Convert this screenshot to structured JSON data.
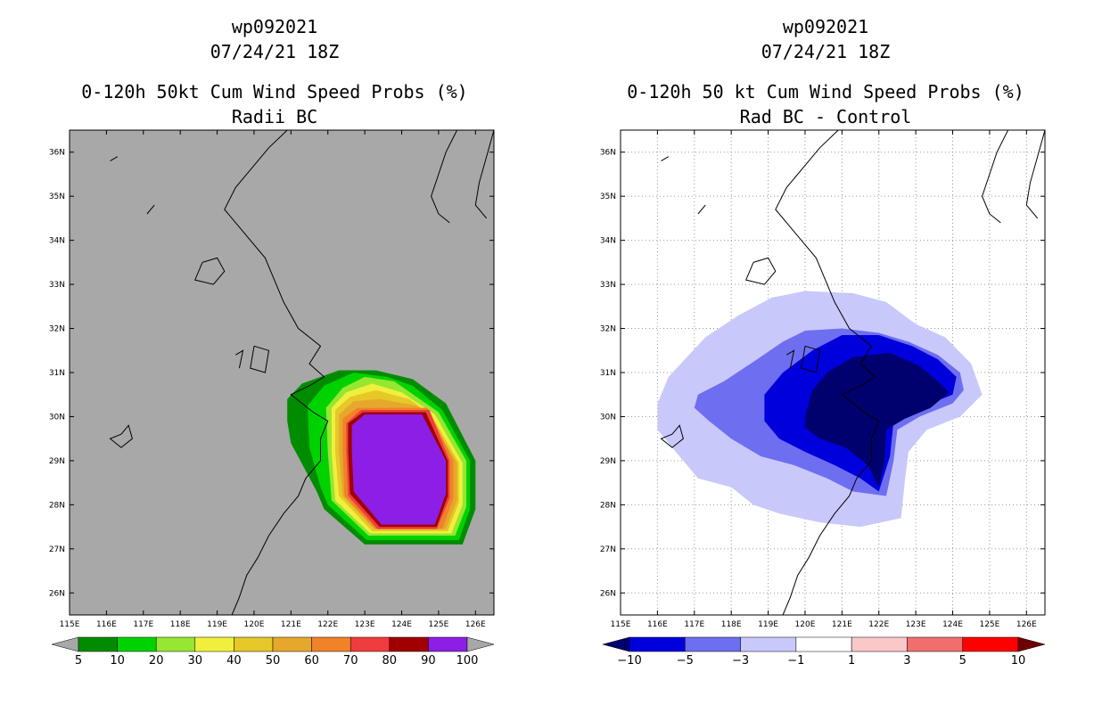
{
  "chart_data": [
    {
      "type": "heatmap",
      "storm_id": "wp092021",
      "date": "07/24/21 18Z",
      "title": "0-120h 50kt Cum Wind Speed Probs (%)",
      "subtitle": "Radii BC",
      "xlim": [
        115,
        126.5
      ],
      "ylim": [
        25.5,
        36.5
      ],
      "x_ticks": [
        "115E",
        "116E",
        "117E",
        "118E",
        "119E",
        "120E",
        "121E",
        "122E",
        "123E",
        "124E",
        "125E",
        "126E"
      ],
      "y_ticks": [
        "26N",
        "27N",
        "28N",
        "29N",
        "30N",
        "31N",
        "32N",
        "33N",
        "34N",
        "35N",
        "36N"
      ],
      "grid": false,
      "background": "#a8a8a8",
      "colorbar": {
        "labels": [
          "5",
          "10",
          "20",
          "30",
          "40",
          "50",
          "60",
          "70",
          "80",
          "90",
          "100"
        ],
        "colors": [
          "#008c00",
          "#00d200",
          "#96e632",
          "#f0f03c",
          "#e6c828",
          "#e6a82c",
          "#f08228",
          "#f03c3c",
          "#a00000",
          "#8c1ee6"
        ],
        "ends": [
          "#a8a8a8",
          "#a8a8a8"
        ]
      },
      "contour_levels": [
        {
          "threshold": 5,
          "color": "#008c00",
          "lonlat": [
            [
              120.9,
              30.4
            ],
            [
              121.3,
              30.75
            ],
            [
              122.3,
              31.05
            ],
            [
              123.3,
              31.05
            ],
            [
              124.3,
              30.85
            ],
            [
              125.2,
              30.3
            ],
            [
              126.0,
              29.0
            ],
            [
              126.0,
              27.9
            ],
            [
              125.65,
              27.1
            ],
            [
              123.0,
              27.1
            ],
            [
              121.9,
              27.9
            ],
            [
              121.7,
              28.3
            ],
            [
              121.0,
              29.4
            ],
            [
              120.9,
              29.9
            ]
          ]
        },
        {
          "threshold": 10,
          "color": "#00d200",
          "lonlat": [
            [
              121.45,
              30.25
            ],
            [
              121.9,
              30.7
            ],
            [
              122.7,
              31.0
            ],
            [
              123.6,
              30.9
            ],
            [
              124.3,
              30.7
            ],
            [
              125.1,
              30.15
            ],
            [
              125.85,
              29.0
            ],
            [
              125.85,
              27.9
            ],
            [
              125.55,
              27.2
            ],
            [
              123.05,
              27.2
            ],
            [
              122.0,
              28.0
            ],
            [
              121.8,
              28.4
            ],
            [
              121.5,
              29.3
            ]
          ]
        },
        {
          "threshold": 20,
          "color": "#96e632",
          "lonlat": [
            [
              121.95,
              30.2
            ],
            [
              122.4,
              30.65
            ],
            [
              123.0,
              30.9
            ],
            [
              123.8,
              30.8
            ],
            [
              125.0,
              30.1
            ],
            [
              125.75,
              29.0
            ],
            [
              125.75,
              27.95
            ],
            [
              125.45,
              27.3
            ],
            [
              123.1,
              27.3
            ],
            [
              122.1,
              28.1
            ],
            [
              122.0,
              29.2
            ]
          ]
        },
        {
          "threshold": 30,
          "color": "#f0f03c",
          "lonlat": [
            [
              122.1,
              30.2
            ],
            [
              122.5,
              30.55
            ],
            [
              123.2,
              30.75
            ],
            [
              124.0,
              30.55
            ],
            [
              124.9,
              30.05
            ],
            [
              125.65,
              28.95
            ],
            [
              125.65,
              28.0
            ],
            [
              125.35,
              27.35
            ],
            [
              123.15,
              27.35
            ],
            [
              122.2,
              28.1
            ],
            [
              122.1,
              29.2
            ]
          ]
        },
        {
          "threshold": 40,
          "color": "#e6c828",
          "lonlat": [
            [
              122.2,
              30.15
            ],
            [
              122.6,
              30.45
            ],
            [
              123.3,
              30.6
            ],
            [
              124.2,
              30.4
            ],
            [
              124.8,
              30.05
            ],
            [
              125.55,
              28.95
            ],
            [
              125.55,
              28.05
            ],
            [
              125.25,
              27.4
            ],
            [
              123.2,
              27.4
            ],
            [
              122.3,
              28.2
            ],
            [
              122.2,
              29.2
            ]
          ]
        },
        {
          "threshold": 50,
          "color": "#e6a82c",
          "lonlat": [
            [
              122.3,
              30.05
            ],
            [
              122.7,
              30.35
            ],
            [
              123.4,
              30.4
            ],
            [
              124.4,
              30.25
            ],
            [
              124.75,
              30.0
            ],
            [
              125.5,
              28.95
            ],
            [
              125.5,
              28.1
            ],
            [
              125.2,
              27.45
            ],
            [
              123.25,
              27.45
            ],
            [
              122.4,
              28.2
            ],
            [
              122.3,
              29.2
            ]
          ]
        },
        {
          "threshold": 60,
          "color": "#f08228",
          "lonlat": [
            [
              122.4,
              29.95
            ],
            [
              122.8,
              30.2
            ],
            [
              124.7,
              30.2
            ],
            [
              125.4,
              29.0
            ],
            [
              125.4,
              28.15
            ],
            [
              125.1,
              27.45
            ],
            [
              123.3,
              27.45
            ],
            [
              122.45,
              28.2
            ],
            [
              122.4,
              29.2
            ]
          ]
        },
        {
          "threshold": 70,
          "color": "#f03c3c",
          "lonlat": [
            [
              122.5,
              29.85
            ],
            [
              122.9,
              30.15
            ],
            [
              124.75,
              30.15
            ],
            [
              125.3,
              29.0
            ],
            [
              125.3,
              28.15
            ],
            [
              124.95,
              27.45
            ],
            [
              123.35,
              27.45
            ],
            [
              122.55,
              28.2
            ],
            [
              122.5,
              29.2
            ]
          ]
        },
        {
          "threshold": 80,
          "color": "#a00000",
          "lonlat": [
            [
              122.55,
              29.85
            ],
            [
              122.95,
              30.1
            ],
            [
              124.65,
              30.1
            ],
            [
              125.25,
              29.0
            ],
            [
              125.25,
              28.2
            ],
            [
              124.95,
              27.5
            ],
            [
              123.4,
              27.5
            ],
            [
              122.6,
              28.25
            ],
            [
              122.55,
              29.2
            ]
          ]
        },
        {
          "threshold": 90,
          "color": "#8c1ee6",
          "lonlat": [
            [
              122.65,
              29.8
            ],
            [
              123.0,
              30.05
            ],
            [
              124.55,
              30.05
            ],
            [
              125.2,
              29.0
            ],
            [
              125.2,
              28.25
            ],
            [
              124.9,
              27.55
            ],
            [
              123.45,
              27.55
            ],
            [
              122.7,
              28.3
            ],
            [
              122.65,
              29.2
            ]
          ]
        }
      ]
    },
    {
      "type": "heatmap",
      "storm_id": "wp092021",
      "date": "07/24/21 18Z",
      "title": "0-120h 50 kt Cum Wind Speed Probs (%)",
      "subtitle": "Rad BC - Control",
      "xlim": [
        115,
        126.5
      ],
      "ylim": [
        25.5,
        36.5
      ],
      "x_ticks": [
        "115E",
        "116E",
        "117E",
        "118E",
        "119E",
        "120E",
        "121E",
        "122E",
        "123E",
        "124E",
        "125E",
        "126E"
      ],
      "y_ticks": [
        "26N",
        "27N",
        "28N",
        "29N",
        "30N",
        "31N",
        "32N",
        "33N",
        "34N",
        "35N",
        "36N"
      ],
      "grid": true,
      "background": "#ffffff",
      "colorbar": {
        "labels": [
          "-10",
          "-5",
          "-3",
          "-1",
          "1",
          "3",
          "5",
          "10"
        ],
        "colors": [
          "#0000dc",
          "#6e6ef0",
          "#c8c8fa",
          "#ffffff",
          "#fac8c8",
          "#f06e6e",
          "#ff0000"
        ],
        "ends": [
          "#00006e",
          "#6e0000"
        ]
      },
      "contour_levels": [
        {
          "threshold": -1,
          "color": "#c8c8fa",
          "lonlat": [
            [
              116.0,
              30.3
            ],
            [
              116.3,
              30.9
            ],
            [
              117.3,
              31.8
            ],
            [
              118.2,
              32.3
            ],
            [
              119.1,
              32.7
            ],
            [
              120.0,
              32.85
            ],
            [
              121.3,
              32.8
            ],
            [
              122.2,
              32.6
            ],
            [
              123.0,
              32.1
            ],
            [
              123.8,
              31.8
            ],
            [
              124.5,
              31.2
            ],
            [
              124.8,
              30.5
            ],
            [
              124.2,
              30.0
            ],
            [
              123.3,
              29.7
            ],
            [
              122.8,
              29.2
            ],
            [
              122.7,
              28.5
            ],
            [
              122.6,
              27.7
            ],
            [
              121.5,
              27.5
            ],
            [
              120.4,
              27.6
            ],
            [
              119.3,
              27.8
            ],
            [
              118.6,
              28.0
            ],
            [
              118.0,
              28.4
            ],
            [
              117.1,
              28.6
            ],
            [
              116.6,
              29.1
            ],
            [
              116.0,
              29.7
            ]
          ]
        },
        {
          "threshold": -3,
          "color": "#6e6ef0",
          "lonlat": [
            [
              117.1,
              30.5
            ],
            [
              117.8,
              30.8
            ],
            [
              118.7,
              31.3
            ],
            [
              119.4,
              31.7
            ],
            [
              120.0,
              31.95
            ],
            [
              121.0,
              32.0
            ],
            [
              122.0,
              31.9
            ],
            [
              122.8,
              31.7
            ],
            [
              123.6,
              31.4
            ],
            [
              124.2,
              31.0
            ],
            [
              124.3,
              30.6
            ],
            [
              124.0,
              30.3
            ],
            [
              123.1,
              30.0
            ],
            [
              122.5,
              29.7
            ],
            [
              122.4,
              29.0
            ],
            [
              122.2,
              28.2
            ],
            [
              121.3,
              28.3
            ],
            [
              120.6,
              28.6
            ],
            [
              119.7,
              28.9
            ],
            [
              118.8,
              29.1
            ],
            [
              118.0,
              29.5
            ],
            [
              117.4,
              29.9
            ],
            [
              117.0,
              30.2
            ]
          ]
        },
        {
          "threshold": -5,
          "color": "#0000dc",
          "lonlat": [
            [
              118.9,
              30.5
            ],
            [
              119.4,
              31.0
            ],
            [
              120.2,
              31.5
            ],
            [
              121.0,
              31.85
            ],
            [
              122.0,
              31.85
            ],
            [
              122.9,
              31.6
            ],
            [
              123.6,
              31.3
            ],
            [
              124.1,
              30.9
            ],
            [
              124.0,
              30.5
            ],
            [
              123.1,
              30.2
            ],
            [
              122.4,
              29.9
            ],
            [
              122.3,
              29.1
            ],
            [
              122.0,
              28.3
            ],
            [
              121.5,
              28.6
            ],
            [
              120.8,
              28.9
            ],
            [
              120.0,
              29.2
            ],
            [
              119.3,
              29.5
            ],
            [
              118.9,
              29.9
            ]
          ]
        },
        {
          "threshold": -10,
          "color": "#00006e",
          "lonlat": [
            [
              120.0,
              30.0
            ],
            [
              120.2,
              30.6
            ],
            [
              120.6,
              31.0
            ],
            [
              121.3,
              31.35
            ],
            [
              122.3,
              31.45
            ],
            [
              123.1,
              31.15
            ],
            [
              123.6,
              30.8
            ],
            [
              123.9,
              30.55
            ],
            [
              123.4,
              30.2
            ],
            [
              122.7,
              29.95
            ],
            [
              122.2,
              29.7
            ],
            [
              122.15,
              29.0
            ],
            [
              122.0,
              28.4
            ],
            [
              121.7,
              28.9
            ],
            [
              121.1,
              29.3
            ],
            [
              120.4,
              29.5
            ],
            [
              120.0,
              29.75
            ]
          ]
        }
      ]
    }
  ]
}
